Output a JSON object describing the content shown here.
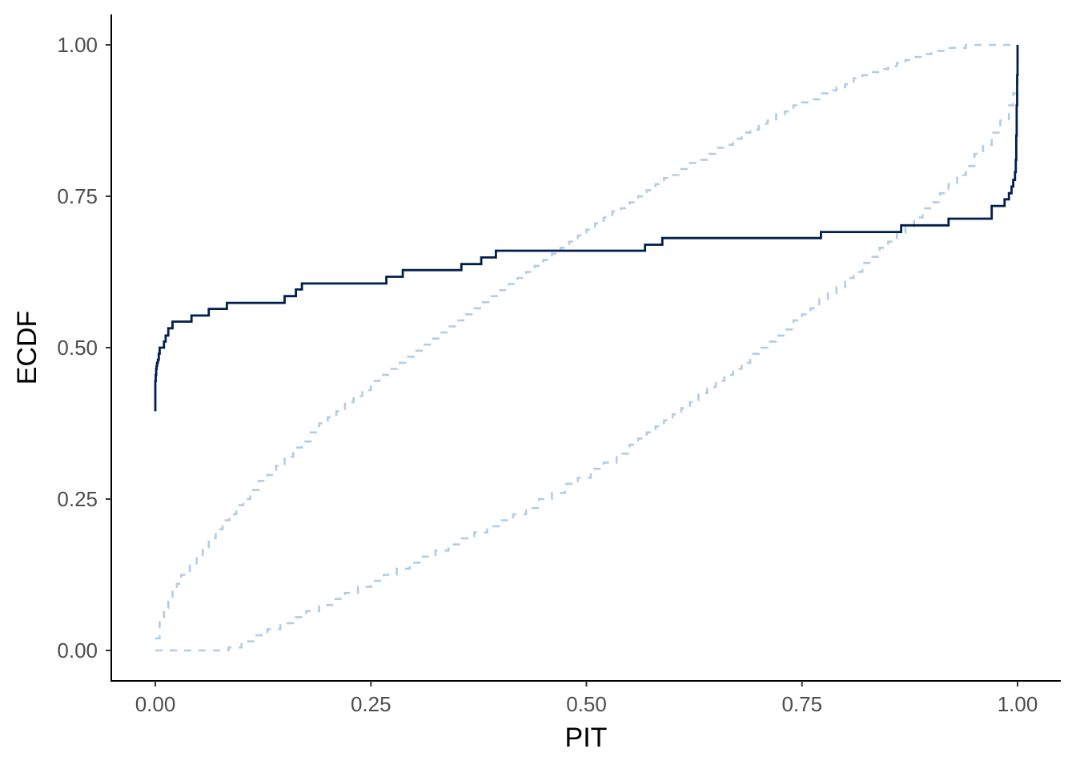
{
  "chart_data": {
    "type": "line",
    "title": "",
    "xlabel": "PIT",
    "ylabel": "ECDF",
    "xlim": [
      -0.025,
      1.025
    ],
    "ylim": [
      -0.05,
      1.05
    ],
    "x_ticks": [
      0,
      0.25,
      0.5,
      0.75,
      1
    ],
    "x_tick_labels": [
      "0.00",
      "0.25",
      "0.50",
      "0.75",
      "1.00"
    ],
    "y_ticks": [
      0,
      0.25,
      0.5,
      0.75,
      1
    ],
    "y_tick_labels": [
      "0.00",
      "0.25",
      "0.50",
      "0.75",
      "1.00"
    ],
    "grid": false,
    "colors": {
      "ecdf": "#011f4b",
      "band": "#b3cde0",
      "axis": "#000000",
      "tick_text": "#4d4d4d"
    },
    "series": [
      {
        "role": "ecdf",
        "step": true,
        "x": [
          0.0,
          0.0,
          0.0005,
          0.001,
          0.0015,
          0.002,
          0.003,
          0.004,
          0.005,
          0.01,
          0.012,
          0.015,
          0.02,
          0.042,
          0.062,
          0.083,
          0.15,
          0.163,
          0.17,
          0.268,
          0.287,
          0.355,
          0.378,
          0.395,
          0.568,
          0.588,
          0.772,
          0.865,
          0.92,
          0.97,
          0.985,
          0.99,
          0.993,
          0.995,
          0.997,
          0.998,
          0.9985,
          0.999,
          0.9995,
          1.0,
          1.0
        ],
        "y": [
          0.395,
          0.445,
          0.455,
          0.465,
          0.47,
          0.475,
          0.48,
          0.49,
          0.5,
          0.51,
          0.52,
          0.532,
          0.543,
          0.553,
          0.564,
          0.574,
          0.585,
          0.596,
          0.606,
          0.617,
          0.628,
          0.638,
          0.649,
          0.66,
          0.67,
          0.681,
          0.691,
          0.702,
          0.713,
          0.734,
          0.745,
          0.755,
          0.766,
          0.777,
          0.79,
          0.81,
          0.85,
          0.9,
          0.95,
          0.98,
          1.0
        ]
      },
      {
        "role": "upper-band",
        "step": true,
        "x": [
          0.0,
          0.005,
          0.01,
          0.015,
          0.02,
          0.025,
          0.03,
          0.04,
          0.048,
          0.055,
          0.062,
          0.07,
          0.078,
          0.086,
          0.094,
          0.102,
          0.11,
          0.12,
          0.13,
          0.14,
          0.15,
          0.16,
          0.17,
          0.18,
          0.19,
          0.2,
          0.21,
          0.22,
          0.23,
          0.24,
          0.25,
          0.26,
          0.27,
          0.28,
          0.29,
          0.3,
          0.31,
          0.32,
          0.33,
          0.34,
          0.35,
          0.36,
          0.37,
          0.38,
          0.39,
          0.4,
          0.41,
          0.42,
          0.43,
          0.44,
          0.45,
          0.46,
          0.47,
          0.48,
          0.49,
          0.5,
          0.51,
          0.52,
          0.53,
          0.54,
          0.55,
          0.56,
          0.57,
          0.58,
          0.59,
          0.6,
          0.61,
          0.62,
          0.63,
          0.64,
          0.65,
          0.66,
          0.67,
          0.68,
          0.69,
          0.7,
          0.71,
          0.72,
          0.73,
          0.74,
          0.75,
          0.76,
          0.77,
          0.78,
          0.79,
          0.8,
          0.81,
          0.82,
          0.83,
          0.84,
          0.85,
          0.86,
          0.87,
          0.88,
          0.89,
          0.9,
          0.92,
          0.94,
          0.96,
          0.98,
          1.0
        ],
        "y": [
          0.02,
          0.05,
          0.07,
          0.085,
          0.1,
          0.11,
          0.125,
          0.14,
          0.155,
          0.17,
          0.185,
          0.2,
          0.215,
          0.225,
          0.24,
          0.25,
          0.265,
          0.28,
          0.29,
          0.305,
          0.32,
          0.335,
          0.345,
          0.36,
          0.375,
          0.385,
          0.395,
          0.41,
          0.42,
          0.43,
          0.445,
          0.455,
          0.465,
          0.475,
          0.485,
          0.495,
          0.505,
          0.515,
          0.525,
          0.535,
          0.545,
          0.555,
          0.565,
          0.575,
          0.585,
          0.595,
          0.605,
          0.615,
          0.625,
          0.635,
          0.645,
          0.655,
          0.665,
          0.675,
          0.685,
          0.695,
          0.705,
          0.715,
          0.725,
          0.73,
          0.74,
          0.75,
          0.76,
          0.77,
          0.78,
          0.785,
          0.795,
          0.805,
          0.81,
          0.82,
          0.83,
          0.835,
          0.845,
          0.855,
          0.86,
          0.87,
          0.875,
          0.885,
          0.89,
          0.9,
          0.905,
          0.91,
          0.92,
          0.925,
          0.93,
          0.935,
          0.945,
          0.95,
          0.955,
          0.96,
          0.965,
          0.97,
          0.975,
          0.98,
          0.985,
          0.99,
          0.995,
          1.0,
          1.0,
          1.0,
          1.0
        ]
      },
      {
        "role": "lower-band",
        "step": true,
        "x": [
          0.0,
          0.02,
          0.04,
          0.06,
          0.085,
          0.1,
          0.115,
          0.13,
          0.145,
          0.16,
          0.175,
          0.19,
          0.205,
          0.22,
          0.235,
          0.25,
          0.265,
          0.28,
          0.295,
          0.31,
          0.325,
          0.34,
          0.355,
          0.37,
          0.385,
          0.4,
          0.415,
          0.43,
          0.445,
          0.46,
          0.475,
          0.49,
          0.505,
          0.52,
          0.535,
          0.55,
          0.56,
          0.57,
          0.58,
          0.59,
          0.6,
          0.61,
          0.62,
          0.63,
          0.64,
          0.65,
          0.66,
          0.67,
          0.68,
          0.69,
          0.7,
          0.71,
          0.72,
          0.73,
          0.74,
          0.75,
          0.76,
          0.77,
          0.78,
          0.79,
          0.8,
          0.81,
          0.82,
          0.83,
          0.84,
          0.85,
          0.86,
          0.87,
          0.88,
          0.89,
          0.9,
          0.91,
          0.92,
          0.93,
          0.94,
          0.95,
          0.96,
          0.97,
          0.98,
          0.99,
          0.995,
          1.0
        ],
        "y": [
          0.0,
          0.0,
          0.0,
          0.0,
          0.005,
          0.015,
          0.025,
          0.035,
          0.045,
          0.055,
          0.065,
          0.075,
          0.085,
          0.095,
          0.105,
          0.115,
          0.125,
          0.135,
          0.145,
          0.155,
          0.165,
          0.175,
          0.185,
          0.195,
          0.205,
          0.215,
          0.225,
          0.235,
          0.25,
          0.26,
          0.275,
          0.285,
          0.3,
          0.31,
          0.325,
          0.34,
          0.35,
          0.36,
          0.37,
          0.38,
          0.39,
          0.4,
          0.41,
          0.425,
          0.435,
          0.445,
          0.455,
          0.465,
          0.475,
          0.49,
          0.5,
          0.51,
          0.52,
          0.53,
          0.545,
          0.555,
          0.565,
          0.58,
          0.59,
          0.6,
          0.615,
          0.625,
          0.64,
          0.65,
          0.665,
          0.675,
          0.69,
          0.7,
          0.715,
          0.73,
          0.74,
          0.755,
          0.77,
          0.785,
          0.8,
          0.82,
          0.835,
          0.855,
          0.875,
          0.9,
          0.92,
          0.95
        ]
      }
    ]
  }
}
